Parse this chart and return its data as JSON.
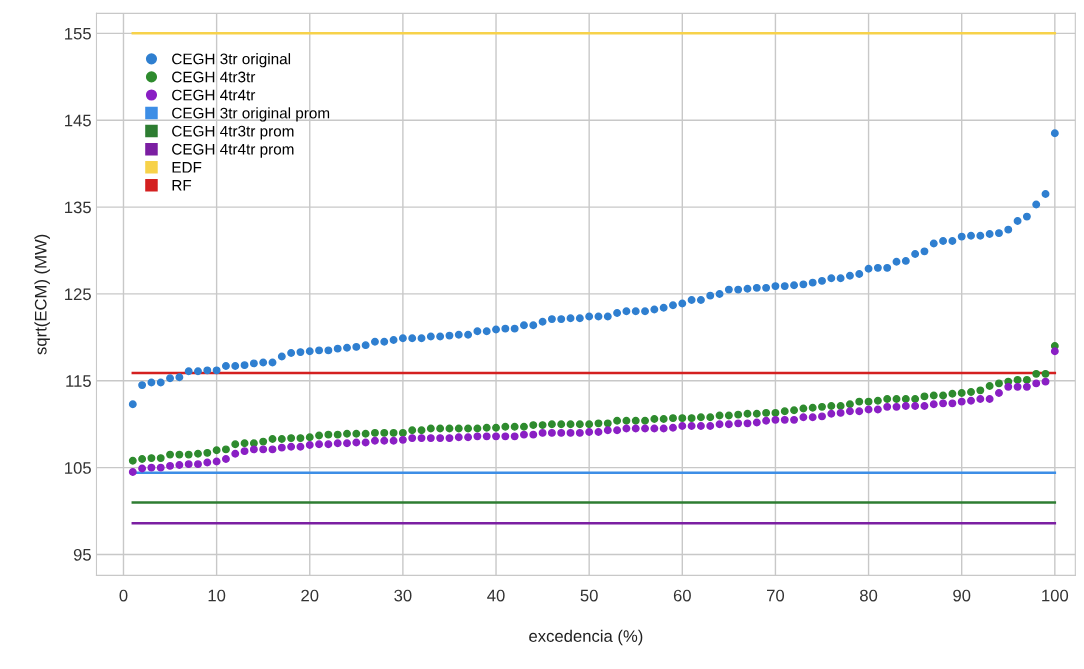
{
  "chart_data": {
    "type": "scatter",
    "xlabel": "excedencia (%)",
    "ylabel": "sqrt(ECM) (MW)",
    "xlim": [
      -2.9,
      102.2
    ],
    "ylim": [
      92.6,
      157.3
    ],
    "xticks": [
      0,
      10,
      20,
      30,
      40,
      50,
      60,
      70,
      80,
      90,
      100
    ],
    "yticks": [
      95,
      105,
      115,
      125,
      135,
      145,
      155
    ],
    "grid": true,
    "legend": "top left",
    "marker": "circle",
    "x": [
      1,
      2,
      3,
      4,
      5,
      6,
      7,
      8,
      9,
      10,
      11,
      12,
      13,
      14,
      15,
      16,
      17,
      18,
      19,
      20,
      21,
      22,
      23,
      24,
      25,
      26,
      27,
      28,
      29,
      30,
      31,
      32,
      33,
      34,
      35,
      36,
      37,
      38,
      39,
      40,
      41,
      42,
      43,
      44,
      45,
      46,
      47,
      48,
      49,
      50,
      51,
      52,
      53,
      54,
      55,
      56,
      57,
      58,
      59,
      60,
      61,
      62,
      63,
      64,
      65,
      66,
      67,
      68,
      69,
      70,
      71,
      72,
      73,
      74,
      75,
      76,
      77,
      78,
      79,
      80,
      81,
      82,
      83,
      84,
      85,
      86,
      87,
      88,
      89,
      90,
      91,
      92,
      93,
      94,
      95,
      96,
      97,
      98,
      99,
      100
    ],
    "series": [
      {
        "name": "CEGH 3tr original",
        "color": "#2f7fd0",
        "values": [
          112.3,
          114.5,
          114.8,
          114.8,
          115.3,
          115.4,
          116.1,
          116.1,
          116.2,
          116.2,
          116.7,
          116.7,
          116.8,
          117.0,
          117.1,
          117.1,
          117.8,
          118.2,
          118.3,
          118.4,
          118.5,
          118.5,
          118.7,
          118.8,
          118.9,
          119.1,
          119.5,
          119.5,
          119.7,
          119.9,
          119.9,
          119.9,
          120.1,
          120.1,
          120.2,
          120.3,
          120.3,
          120.7,
          120.7,
          120.9,
          121.0,
          121.0,
          121.4,
          121.4,
          121.8,
          122.1,
          122.1,
          122.2,
          122.2,
          122.4,
          122.4,
          122.4,
          122.8,
          123.0,
          123.0,
          123.0,
          123.2,
          123.4,
          123.7,
          123.9,
          124.3,
          124.3,
          124.8,
          125.0,
          125.5,
          125.5,
          125.6,
          125.7,
          125.7,
          125.9,
          125.9,
          126.0,
          126.1,
          126.3,
          126.5,
          126.8,
          126.8,
          127.1,
          127.3,
          127.9,
          128.0,
          128.0,
          128.7,
          128.8,
          129.6,
          129.9,
          130.8,
          131.1,
          131.1,
          131.6,
          131.7,
          131.7,
          131.9,
          132.0,
          132.4,
          133.4,
          133.9,
          135.3,
          136.5,
          143.5
        ]
      },
      {
        "name": "CEGH 4tr3tr",
        "color": "#2e8b2e",
        "values": [
          105.8,
          106.0,
          106.1,
          106.1,
          106.5,
          106.5,
          106.5,
          106.6,
          106.7,
          107.0,
          107.1,
          107.7,
          107.8,
          107.8,
          108.0,
          108.3,
          108.3,
          108.4,
          108.4,
          108.5,
          108.7,
          108.8,
          108.8,
          108.9,
          108.9,
          108.9,
          109.0,
          109.0,
          109.0,
          109.0,
          109.3,
          109.3,
          109.5,
          109.5,
          109.5,
          109.5,
          109.5,
          109.5,
          109.6,
          109.6,
          109.7,
          109.7,
          109.7,
          109.9,
          109.9,
          110.0,
          110.0,
          110.0,
          110.0,
          110.0,
          110.1,
          110.1,
          110.4,
          110.4,
          110.4,
          110.4,
          110.6,
          110.6,
          110.7,
          110.7,
          110.7,
          110.8,
          110.8,
          111.0,
          111.0,
          111.1,
          111.2,
          111.2,
          111.3,
          111.3,
          111.5,
          111.6,
          111.8,
          111.9,
          112.0,
          112.1,
          112.1,
          112.3,
          112.6,
          112.6,
          112.7,
          112.9,
          112.9,
          112.9,
          112.9,
          113.2,
          113.3,
          113.3,
          113.5,
          113.6,
          113.7,
          113.9,
          114.4,
          114.7,
          114.9,
          115.1,
          115.1,
          115.8,
          115.8,
          119.0
        ]
      },
      {
        "name": "CEGH 4tr4tr",
        "color": "#8a1fc4",
        "values": [
          104.5,
          104.9,
          105.0,
          105.0,
          105.2,
          105.3,
          105.4,
          105.4,
          105.6,
          105.7,
          106.0,
          106.6,
          106.9,
          107.1,
          107.1,
          107.1,
          107.3,
          107.4,
          107.4,
          107.6,
          107.7,
          107.7,
          107.8,
          107.8,
          107.9,
          107.9,
          108.1,
          108.1,
          108.1,
          108.2,
          108.4,
          108.4,
          108.4,
          108.4,
          108.4,
          108.5,
          108.5,
          108.6,
          108.6,
          108.6,
          108.6,
          108.6,
          108.8,
          108.8,
          109.0,
          109.0,
          109.0,
          109.0,
          109.0,
          109.1,
          109.1,
          109.3,
          109.3,
          109.5,
          109.5,
          109.5,
          109.5,
          109.5,
          109.6,
          109.8,
          109.8,
          109.8,
          109.8,
          110.0,
          110.0,
          110.1,
          110.1,
          110.2,
          110.4,
          110.5,
          110.5,
          110.5,
          110.8,
          110.8,
          110.9,
          111.2,
          111.3,
          111.5,
          111.5,
          111.7,
          111.7,
          112.0,
          112.0,
          112.1,
          112.1,
          112.1,
          112.3,
          112.4,
          112.4,
          112.6,
          112.7,
          112.9,
          112.9,
          113.6,
          114.3,
          114.3,
          114.3,
          114.7,
          114.9,
          118.4
        ]
      },
      {
        "name": "CEGH 3tr original prom",
        "type": "line",
        "marker": "none",
        "color": "#3d8ee6",
        "values": [
          104.4,
          104.4,
          104.4,
          104.4,
          104.4,
          104.4,
          104.4,
          104.4,
          104.4,
          104.4,
          104.4,
          104.4,
          104.4,
          104.4,
          104.4,
          104.4,
          104.4,
          104.4,
          104.4,
          104.4,
          104.4,
          104.4,
          104.4,
          104.4,
          104.4,
          104.4,
          104.4,
          104.4,
          104.4,
          104.4,
          104.4,
          104.4,
          104.4,
          104.4,
          104.4,
          104.4,
          104.4,
          104.4,
          104.4,
          104.4,
          104.4,
          104.4,
          104.4,
          104.4,
          104.4,
          104.4,
          104.4,
          104.4,
          104.4,
          104.4,
          104.4,
          104.4,
          104.4,
          104.4,
          104.4,
          104.4,
          104.4,
          104.4,
          104.4,
          104.4,
          104.4,
          104.4,
          104.4,
          104.4,
          104.4,
          104.4,
          104.4,
          104.4,
          104.4,
          104.4,
          104.4,
          104.4,
          104.4,
          104.4,
          104.4,
          104.4,
          104.4,
          104.4,
          104.4,
          104.4,
          104.4,
          104.4,
          104.4,
          104.4,
          104.4,
          104.4,
          104.4,
          104.4,
          104.4,
          104.4,
          104.4,
          104.4,
          104.4,
          104.4,
          104.4,
          104.4,
          104.4,
          104.4,
          104.4,
          104.4
        ]
      },
      {
        "name": "CEGH 4tr3tr prom",
        "type": "line",
        "marker": "none",
        "color": "#2e7d32",
        "values": [
          101.0,
          101.0,
          101.0,
          101.0,
          101.0,
          101.0,
          101.0,
          101.0,
          101.0,
          101.0,
          101.0,
          101.0,
          101.0,
          101.0,
          101.0,
          101.0,
          101.0,
          101.0,
          101.0,
          101.0,
          101.0,
          101.0,
          101.0,
          101.0,
          101.0,
          101.0,
          101.0,
          101.0,
          101.0,
          101.0,
          101.0,
          101.0,
          101.0,
          101.0,
          101.0,
          101.0,
          101.0,
          101.0,
          101.0,
          101.0,
          101.0,
          101.0,
          101.0,
          101.0,
          101.0,
          101.0,
          101.0,
          101.0,
          101.0,
          101.0,
          101.0,
          101.0,
          101.0,
          101.0,
          101.0,
          101.0,
          101.0,
          101.0,
          101.0,
          101.0,
          101.0,
          101.0,
          101.0,
          101.0,
          101.0,
          101.0,
          101.0,
          101.0,
          101.0,
          101.0,
          101.0,
          101.0,
          101.0,
          101.0,
          101.0,
          101.0,
          101.0,
          101.0,
          101.0,
          101.0,
          101.0,
          101.0,
          101.0,
          101.0,
          101.0,
          101.0,
          101.0,
          101.0,
          101.0,
          101.0,
          101.0,
          101.0,
          101.0,
          101.0,
          101.0,
          101.0,
          101.0,
          101.0,
          101.0,
          101.0
        ]
      },
      {
        "name": "CEGH 4tr4tr prom",
        "type": "line",
        "marker": "none",
        "color": "#7b1fa2",
        "values": [
          98.6,
          98.6,
          98.6,
          98.6,
          98.6,
          98.6,
          98.6,
          98.6,
          98.6,
          98.6,
          98.6,
          98.6,
          98.6,
          98.6,
          98.6,
          98.6,
          98.6,
          98.6,
          98.6,
          98.6,
          98.6,
          98.6,
          98.6,
          98.6,
          98.6,
          98.6,
          98.6,
          98.6,
          98.6,
          98.6,
          98.6,
          98.6,
          98.6,
          98.6,
          98.6,
          98.6,
          98.6,
          98.6,
          98.6,
          98.6,
          98.6,
          98.6,
          98.6,
          98.6,
          98.6,
          98.6,
          98.6,
          98.6,
          98.6,
          98.6,
          98.6,
          98.6,
          98.6,
          98.6,
          98.6,
          98.6,
          98.6,
          98.6,
          98.6,
          98.6,
          98.6,
          98.6,
          98.6,
          98.6,
          98.6,
          98.6,
          98.6,
          98.6,
          98.6,
          98.6,
          98.6,
          98.6,
          98.6,
          98.6,
          98.6,
          98.6,
          98.6,
          98.6,
          98.6,
          98.6,
          98.6,
          98.6,
          98.6,
          98.6,
          98.6,
          98.6,
          98.6,
          98.6,
          98.6,
          98.6,
          98.6,
          98.6,
          98.6,
          98.6,
          98.6,
          98.6,
          98.6,
          98.6,
          98.6,
          98.6
        ]
      },
      {
        "name": "EDF",
        "type": "line",
        "marker": "none",
        "color": "#f7d24a",
        "values": [
          155,
          155,
          155,
          155,
          155,
          155,
          155,
          155,
          155,
          155,
          155,
          155,
          155,
          155,
          155,
          155,
          155,
          155,
          155,
          155,
          155,
          155,
          155,
          155,
          155,
          155,
          155,
          155,
          155,
          155,
          155,
          155,
          155,
          155,
          155,
          155,
          155,
          155,
          155,
          155,
          155,
          155,
          155,
          155,
          155,
          155,
          155,
          155,
          155,
          155,
          155,
          155,
          155,
          155,
          155,
          155,
          155,
          155,
          155,
          155,
          155,
          155,
          155,
          155,
          155,
          155,
          155,
          155,
          155,
          155,
          155,
          155,
          155,
          155,
          155,
          155,
          155,
          155,
          155,
          155,
          155,
          155,
          155,
          155,
          155,
          155,
          155,
          155,
          155,
          155,
          155,
          155,
          155,
          155,
          155,
          155,
          155,
          155,
          155,
          155
        ]
      },
      {
        "name": "RF",
        "type": "line",
        "marker": "none",
        "color": "#d42020",
        "values": [
          115.9,
          115.9,
          115.9,
          115.9,
          115.9,
          115.9,
          115.9,
          115.9,
          115.9,
          115.9,
          115.9,
          115.9,
          115.9,
          115.9,
          115.9,
          115.9,
          115.9,
          115.9,
          115.9,
          115.9,
          115.9,
          115.9,
          115.9,
          115.9,
          115.9,
          115.9,
          115.9,
          115.9,
          115.9,
          115.9,
          115.9,
          115.9,
          115.9,
          115.9,
          115.9,
          115.9,
          115.9,
          115.9,
          115.9,
          115.9,
          115.9,
          115.9,
          115.9,
          115.9,
          115.9,
          115.9,
          115.9,
          115.9,
          115.9,
          115.9,
          115.9,
          115.9,
          115.9,
          115.9,
          115.9,
          115.9,
          115.9,
          115.9,
          115.9,
          115.9,
          115.9,
          115.9,
          115.9,
          115.9,
          115.9,
          115.9,
          115.9,
          115.9,
          115.9,
          115.9,
          115.9,
          115.9,
          115.9,
          115.9,
          115.9,
          115.9,
          115.9,
          115.9,
          115.9,
          115.9,
          115.9,
          115.9,
          115.9,
          115.9,
          115.9,
          115.9,
          115.9,
          115.9,
          115.9,
          115.9,
          115.9,
          115.9,
          115.9,
          115.9,
          115.9,
          115.9,
          115.9,
          115.9,
          115.9,
          115.9
        ]
      }
    ]
  }
}
